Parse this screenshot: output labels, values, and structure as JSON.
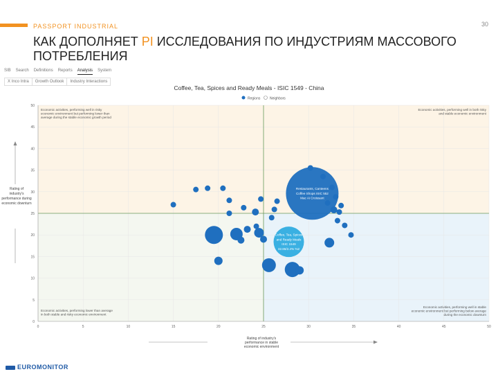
{
  "header": {
    "brand": "PASSPORT INDUSTRIAL",
    "page_number": "30",
    "title_part1": "КАК ДОПОЛНЯЕТ ",
    "title_highlight": "PI",
    "title_part2": " ИССЛЕДОВАНИЯ ПО ИНДУСТРИЯМ МАССОВОГО ПОТРЕБЛЕНИЯ",
    "accent_color": "#f29221"
  },
  "tabs": [
    {
      "label": "SIB",
      "active": false
    },
    {
      "label": "Search",
      "active": false
    },
    {
      "label": "Definitions",
      "active": false
    },
    {
      "label": "Reports",
      "active": false
    },
    {
      "label": "Analysis",
      "active": true
    },
    {
      "label": "System",
      "active": false
    }
  ],
  "subtabs": [
    "X Inco Intra",
    "Growth Outlook",
    "Industry Interactions"
  ],
  "chart_data": {
    "type": "scatter",
    "title": "Coffee, Tea, Spices and Ready Meals - ISIC 1549 - China",
    "legend": [
      {
        "label": "Regions",
        "color": "#1f6fbf",
        "selected": true
      },
      {
        "label": "Neighbors",
        "color": "#ffffff",
        "selected": false
      }
    ],
    "xlabel": "Rating of industry's performance in stable economic environment",
    "ylabel": "Rating of industry's performance during economic downturn",
    "xlim": [
      0,
      50
    ],
    "ylim": [
      0,
      50
    ],
    "x_ticks": [
      0,
      5,
      10,
      15,
      20,
      25,
      30,
      35,
      40,
      45,
      50
    ],
    "y_ticks": [
      0,
      5,
      10,
      15,
      20,
      25,
      30,
      35,
      40,
      45,
      50
    ],
    "divider": {
      "x": 25,
      "y": 25
    },
    "quadrants": {
      "top_left": "Economic activities, performing well in risky economic environment but performing lower than average during the stable economic growth period",
      "top_right": "Economic activities, performing well in both risky and stable economic environment",
      "bottom_left": "Economic activities, performing lower than average in both stable and risky economic environment",
      "bottom_right": "Economic activities, performing well in stable economic environment but performing below average during the economic downturn"
    },
    "quadrant_colors": {
      "top_left": "#fdf4e6",
      "top_right": "#fdf4e6",
      "bottom_left": "#f4f7f0",
      "bottom_right": "#e9f3fa"
    },
    "bubble_color": "#1f6fbf",
    "highlight_color": "#3ab0e2",
    "bubbles": [
      {
        "x": 15.0,
        "y": 27.0,
        "r": 4
      },
      {
        "x": 17.5,
        "y": 30.5,
        "r": 4
      },
      {
        "x": 18.8,
        "y": 30.8,
        "r": 4
      },
      {
        "x": 20.5,
        "y": 30.8,
        "r": 4
      },
      {
        "x": 21.2,
        "y": 28.0,
        "r": 4
      },
      {
        "x": 21.2,
        "y": 25.0,
        "r": 4
      },
      {
        "x": 19.5,
        "y": 20.0,
        "r": 13
      },
      {
        "x": 20.0,
        "y": 14.0,
        "r": 6
      },
      {
        "x": 22.0,
        "y": 20.2,
        "r": 9
      },
      {
        "x": 22.5,
        "y": 18.8,
        "r": 5
      },
      {
        "x": 22.8,
        "y": 26.3,
        "r": 4
      },
      {
        "x": 23.2,
        "y": 21.3,
        "r": 5
      },
      {
        "x": 24.1,
        "y": 25.3,
        "r": 5
      },
      {
        "x": 24.2,
        "y": 22.0,
        "r": 4
      },
      {
        "x": 24.5,
        "y": 20.5,
        "r": 7
      },
      {
        "x": 24.7,
        "y": 28.3,
        "r": 4
      },
      {
        "x": 25.0,
        "y": 19.0,
        "r": 5
      },
      {
        "x": 25.6,
        "y": 13.0,
        "r": 10
      },
      {
        "x": 25.9,
        "y": 24.0,
        "r": 4
      },
      {
        "x": 26.2,
        "y": 25.9,
        "r": 4
      },
      {
        "x": 26.5,
        "y": 27.8,
        "r": 4
      },
      {
        "x": 28.2,
        "y": 12.0,
        "r": 11
      },
      {
        "x": 29.0,
        "y": 11.8,
        "r": 6
      },
      {
        "x": 30.4,
        "y": 29.6,
        "r": 38,
        "label": [
          "Restaurants, Canteens",
          "Coffee Shops ISIC 552",
          "Mac Ai Croissant"
        ]
      },
      {
        "x": 27.8,
        "y": 18.4,
        "r": 22,
        "highlight": true,
        "label": [
          "Coffee, Tea, Spices",
          "and Ready Meals",
          "ISIC 1549",
          "32.86/2.4% %2"
        ]
      },
      {
        "x": 30.2,
        "y": 35.5,
        "r": 4
      },
      {
        "x": 31.6,
        "y": 33.5,
        "r": 4
      },
      {
        "x": 32.1,
        "y": 27.4,
        "r": 4
      },
      {
        "x": 32.6,
        "y": 31.0,
        "r": 4
      },
      {
        "x": 32.8,
        "y": 25.8,
        "r": 5
      },
      {
        "x": 33.0,
        "y": 28.8,
        "r": 4
      },
      {
        "x": 33.2,
        "y": 23.3,
        "r": 4
      },
      {
        "x": 32.3,
        "y": 18.2,
        "r": 7
      },
      {
        "x": 33.6,
        "y": 26.8,
        "r": 4
      },
      {
        "x": 34.0,
        "y": 22.2,
        "r": 4
      },
      {
        "x": 33.4,
        "y": 25.3,
        "r": 4
      },
      {
        "x": 34.7,
        "y": 20.0,
        "r": 4
      }
    ]
  },
  "footer": {
    "logo_text": "EUROMONITOR"
  }
}
